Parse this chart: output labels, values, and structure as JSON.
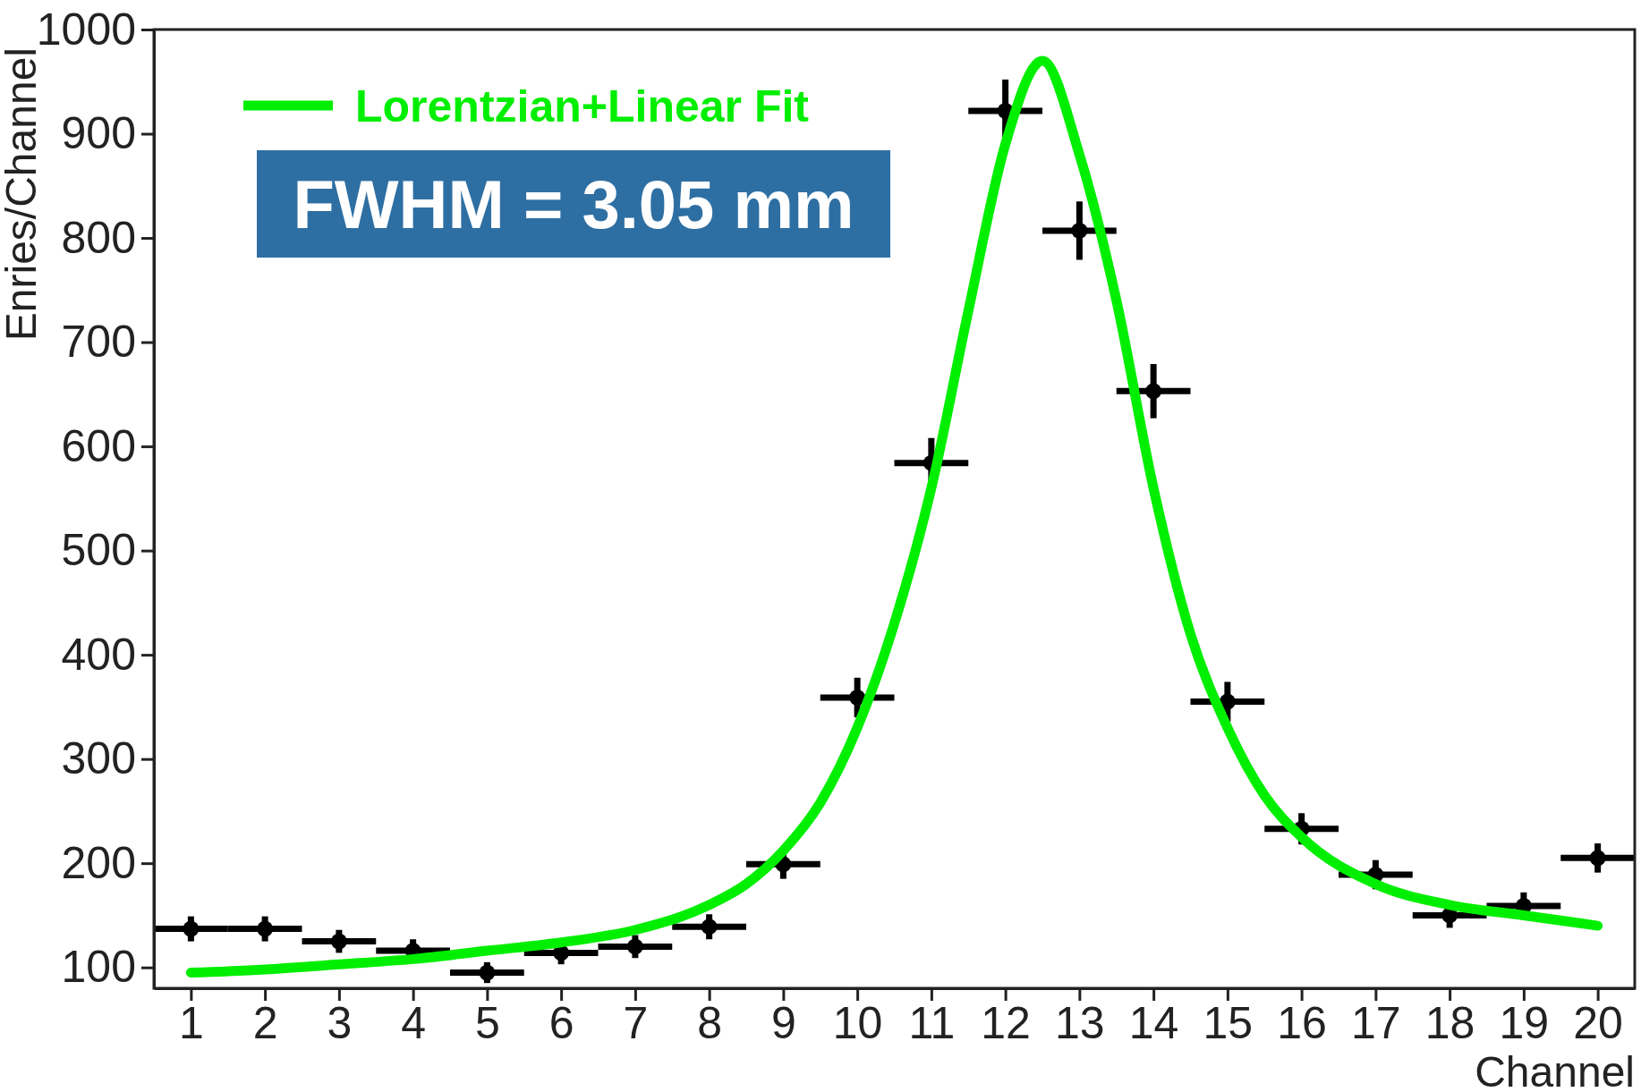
{
  "chart_data": {
    "type": "scatter",
    "xlabel": "Channel",
    "ylabel": "Enries/Channel",
    "xlim": [
      0.5,
      20.5
    ],
    "ylim": [
      80,
      1000
    ],
    "xticks": [
      1,
      2,
      3,
      4,
      5,
      6,
      7,
      8,
      9,
      10,
      11,
      12,
      13,
      14,
      15,
      16,
      17,
      18,
      19,
      20
    ],
    "yticks": [
      100,
      200,
      300,
      400,
      500,
      600,
      700,
      800,
      900,
      1000
    ],
    "legend": "top left",
    "annotations": [
      "FWHM = 3.05 mm"
    ],
    "series": [
      {
        "marker": "circle",
        "color": "#000000",
        "x": [
          1,
          2,
          3,
          4,
          5,
          6,
          7,
          8,
          9,
          10,
          11,
          12,
          13,
          14,
          15,
          16,
          17,
          18,
          19,
          20
        ],
        "values": [
          137,
          137,
          125,
          116,
          95,
          114,
          120,
          139,
          199,
          359,
          584,
          922,
          807,
          653,
          355,
          233,
          189,
          150,
          159,
          205
        ],
        "errors": [
          12,
          12,
          11,
          11,
          10,
          11,
          11,
          12,
          14,
          19,
          24,
          30,
          28,
          26,
          19,
          15,
          14,
          12,
          13,
          14
        ],
        "xerrors": [
          0.5,
          0.5,
          0.5,
          0.5,
          0.5,
          0.5,
          0.5,
          0.5,
          0.5,
          0.5,
          0.5,
          0.5,
          0.5,
          0.5,
          0.5,
          0.5,
          0.5,
          0.5,
          0.5,
          0.5
        ]
      },
      {
        "type": "line",
        "name": "Lorentzian+Linear Fit",
        "color": "#00ee00",
        "x": [
          1,
          2,
          3,
          4,
          5,
          6,
          7,
          8,
          8.5,
          9,
          9.5,
          10,
          10.5,
          11,
          11.5,
          12,
          12.5,
          13,
          13.5,
          14,
          14.5,
          15,
          15.5,
          16,
          17,
          18,
          19,
          20
        ],
        "values": [
          95,
          98,
          103,
          108,
          116,
          124,
          136,
          160,
          180,
          212,
          258,
          330,
          430,
          560,
          730,
          890,
          970,
          880,
          740,
          560,
          420,
          330,
          265,
          225,
          180,
          160,
          150,
          140
        ]
      }
    ]
  }
}
